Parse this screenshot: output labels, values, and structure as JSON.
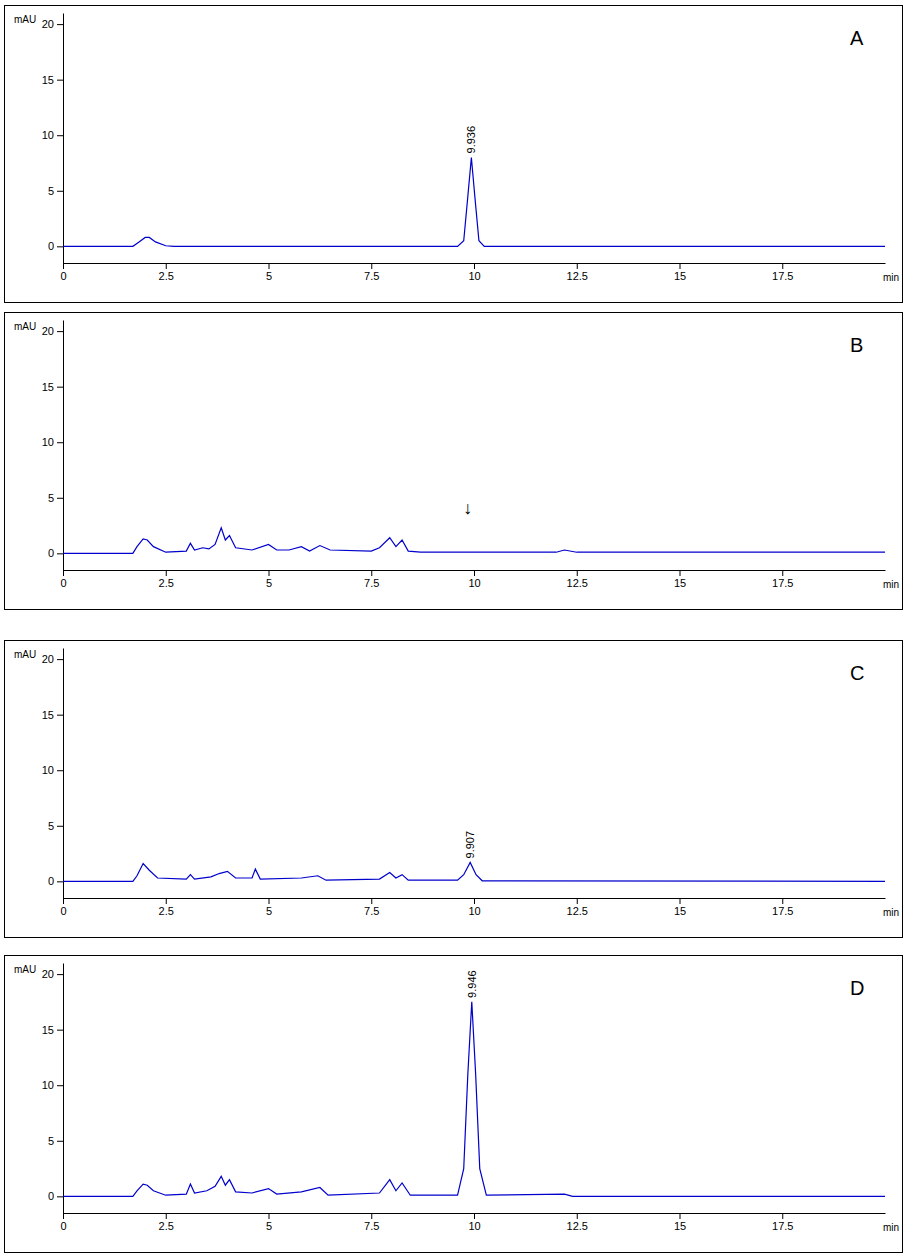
{
  "chart_data": [
    {
      "type": "line",
      "title": "A",
      "ylabel": "mAU",
      "xlabel": "min",
      "color": "#0000cc",
      "xlim": [
        0,
        20
      ],
      "xticks": [
        0,
        2.5,
        5,
        7.5,
        10,
        12.5,
        15,
        17.5
      ],
      "ylim": [
        -1.5,
        21
      ],
      "yticks": [
        0,
        5,
        10,
        15,
        20
      ],
      "x": [
        0,
        1.7,
        1.85,
        2.0,
        2.1,
        2.25,
        2.5,
        2.7,
        9.6,
        9.75,
        9.85,
        9.936,
        10.02,
        10.12,
        10.25,
        10.5,
        20
      ],
      "values": [
        0,
        0,
        0.4,
        0.8,
        0.8,
        0.4,
        0.05,
        0,
        0,
        0.5,
        4.5,
        8,
        4.5,
        0.5,
        0,
        0,
        0
      ],
      "peak_labels": [
        {
          "x": 9.936,
          "y": 8,
          "text": "9.936"
        }
      ]
    },
    {
      "type": "line",
      "title": "B",
      "ylabel": "mAU",
      "xlabel": "min",
      "color": "#0000cc",
      "xlim": [
        0,
        20
      ],
      "xticks": [
        0,
        2.5,
        5,
        7.5,
        10,
        12.5,
        15,
        17.5
      ],
      "ylim": [
        -1.5,
        21
      ],
      "yticks": [
        0,
        5,
        10,
        15,
        20
      ],
      "x": [
        0,
        1.7,
        1.8,
        1.95,
        2.05,
        2.2,
        2.5,
        3.0,
        3.1,
        3.2,
        3.4,
        3.55,
        3.7,
        3.85,
        3.95,
        4.05,
        4.2,
        4.6,
        5.0,
        5.2,
        5.5,
        5.8,
        6.0,
        6.25,
        6.5,
        7.5,
        7.7,
        7.95,
        8.1,
        8.25,
        8.4,
        8.7,
        12.0,
        12.2,
        12.5,
        20
      ],
      "values": [
        0,
        0,
        0.6,
        1.3,
        1.2,
        0.6,
        0.1,
        0.2,
        0.9,
        0.3,
        0.5,
        0.4,
        0.8,
        2.3,
        1.2,
        1.6,
        0.5,
        0.3,
        0.8,
        0.3,
        0.3,
        0.6,
        0.2,
        0.7,
        0.3,
        0.2,
        0.5,
        1.4,
        0.6,
        1.2,
        0.2,
        0.1,
        0.1,
        0.3,
        0.1,
        0.1
      ],
      "annotations": [
        {
          "x": 9.85,
          "y": 3.5,
          "text": "↓"
        }
      ]
    },
    {
      "type": "line",
      "title": "C",
      "ylabel": "mAU",
      "xlabel": "min",
      "color": "#0000cc",
      "xlim": [
        0,
        20
      ],
      "xticks": [
        0,
        2.5,
        5,
        7.5,
        10,
        12.5,
        15,
        17.5
      ],
      "ylim": [
        -1.5,
        21
      ],
      "yticks": [
        0,
        5,
        10,
        15,
        20
      ],
      "x": [
        0,
        1.7,
        1.8,
        1.95,
        2.1,
        2.3,
        3.0,
        3.1,
        3.2,
        3.6,
        3.8,
        4.0,
        4.2,
        4.6,
        4.68,
        4.8,
        5.8,
        6.2,
        6.4,
        7.7,
        7.95,
        8.1,
        8.25,
        8.4,
        9.6,
        9.75,
        9.907,
        10.05,
        10.2,
        20
      ],
      "values": [
        0,
        0,
        0.5,
        1.6,
        1.0,
        0.3,
        0.2,
        0.6,
        0.2,
        0.4,
        0.7,
        0.9,
        0.3,
        0.3,
        1.1,
        0.2,
        0.3,
        0.5,
        0.1,
        0.2,
        0.8,
        0.3,
        0.6,
        0.1,
        0.1,
        0.6,
        1.7,
        0.6,
        0.05,
        0
      ],
      "peak_labels": [
        {
          "x": 9.907,
          "y": 1.7,
          "text": "9.907"
        }
      ]
    },
    {
      "type": "line",
      "title": "D",
      "ylabel": "mAU",
      "xlabel": "min",
      "color": "#0000cc",
      "xlim": [
        0,
        20
      ],
      "xticks": [
        0,
        2.5,
        5,
        7.5,
        10,
        12.5,
        15,
        17.5
      ],
      "ylim": [
        -1.5,
        21
      ],
      "yticks": [
        0,
        5,
        10,
        15,
        20
      ],
      "x": [
        0,
        1.7,
        1.8,
        1.95,
        2.05,
        2.2,
        2.5,
        3.0,
        3.1,
        3.2,
        3.5,
        3.7,
        3.85,
        3.95,
        4.05,
        4.2,
        4.6,
        5.0,
        5.2,
        5.8,
        6.25,
        6.45,
        7.7,
        7.95,
        8.1,
        8.25,
        8.45,
        9.6,
        9.75,
        9.85,
        9.946,
        10.04,
        10.14,
        10.3,
        12.2,
        12.4,
        20
      ],
      "values": [
        0,
        0,
        0.5,
        1.1,
        1.0,
        0.5,
        0.1,
        0.2,
        1.1,
        0.3,
        0.5,
        0.9,
        1.8,
        1.0,
        1.5,
        0.4,
        0.3,
        0.7,
        0.2,
        0.4,
        0.8,
        0.1,
        0.3,
        1.5,
        0.5,
        1.2,
        0.1,
        0.1,
        2.5,
        11,
        17.5,
        11,
        2.5,
        0.1,
        0.2,
        0,
        0
      ],
      "peak_labels": [
        {
          "x": 9.946,
          "y": 17.5,
          "text": "9.946"
        }
      ]
    }
  ]
}
